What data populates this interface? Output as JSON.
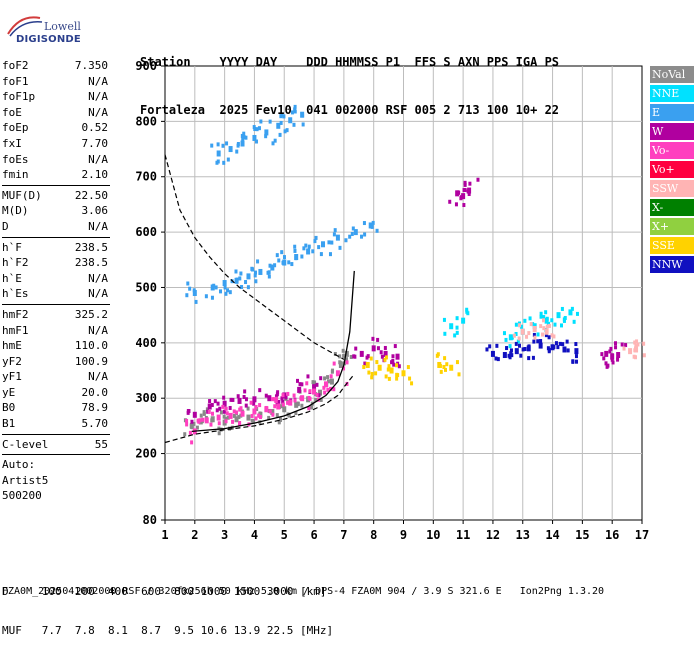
{
  "logo": {
    "lowell": "Lowell",
    "digisonde": "DIGISONDE"
  },
  "header": {
    "line1": "Station    YYYY DAY    DDD HHMMSS P1  FFS S AXN PPS IGA PS",
    "line2": "Fortaleza  2025 Fev10  041 002000 RSF 005 2 713 100 10+ 22"
  },
  "params": {
    "group1": [
      {
        "k": "foF2",
        "v": "7.350"
      },
      {
        "k": "foF1",
        "v": "N/A"
      },
      {
        "k": "foF1p",
        "v": "N/A"
      },
      {
        "k": "foE",
        "v": "N/A"
      },
      {
        "k": "foEp",
        "v": "0.52"
      },
      {
        "k": "fxI",
        "v": "7.70"
      },
      {
        "k": "foEs",
        "v": "N/A"
      },
      {
        "k": "fmin",
        "v": "2.10"
      }
    ],
    "group2": [
      {
        "k": "MUF(D)",
        "v": "22.50"
      },
      {
        "k": "M(D)",
        "v": "3.06"
      },
      {
        "k": "D",
        "v": "N/A"
      }
    ],
    "group3": [
      {
        "k": "h`F",
        "v": "238.5"
      },
      {
        "k": "h`F2",
        "v": "238.5"
      },
      {
        "k": "h`E",
        "v": "N/A"
      },
      {
        "k": "h`Es",
        "v": "N/A"
      }
    ],
    "group4": [
      {
        "k": "hmF2",
        "v": "325.2"
      },
      {
        "k": "hmF1",
        "v": "N/A"
      },
      {
        "k": "hmE",
        "v": "110.0"
      },
      {
        "k": "yF2",
        "v": "100.9"
      },
      {
        "k": "yF1",
        "v": "N/A"
      },
      {
        "k": "yE",
        "v": "20.0"
      },
      {
        "k": "B0",
        "v": "78.9"
      },
      {
        "k": "B1",
        "v": "5.70"
      }
    ],
    "group5": [
      {
        "k": "C-level",
        "v": "55"
      }
    ],
    "auto": [
      "Auto:",
      "Artist5",
      "500200"
    ]
  },
  "footer": {
    "line1": "D     100  200  400  600  800 1000 1500 3000 [km]",
    "line2": "MUF   7.7  7.8  8.1  8.7  9.5 10.6 13.9 22.5 [MHz]",
    "line3": "FZA0M_2025041002000.RSF / 320fx256h 50 kHz 5.0 km / DPS-4 FZA0M 904 / 3.9 S 321.6 E   Ion2Png 1.3.20"
  },
  "legend": [
    {
      "label": "NoVal",
      "color": "#8c8c8c"
    },
    {
      "label": "NNE",
      "color": "#00e1ff"
    },
    {
      "label": "E",
      "color": "#3aa0f0"
    },
    {
      "label": "W",
      "color": "#b0009f"
    },
    {
      "label": "Vo-",
      "color": "#ff3fbf"
    },
    {
      "label": "Vo+",
      "color": "#ff0040"
    },
    {
      "label": "SSW",
      "color": "#ffb4b4"
    },
    {
      "label": "X-",
      "color": "#008000"
    },
    {
      "label": "X+",
      "color": "#90d040"
    },
    {
      "label": "SSE",
      "color": "#ffd200"
    },
    {
      "label": "NNW",
      "color": "#1010c0"
    }
  ],
  "chart_data": {
    "type": "scatter",
    "xlim": [
      1,
      17
    ],
    "ylim": [
      80,
      900
    ],
    "x_ticks": [
      1,
      2,
      3,
      4,
      5,
      6,
      7,
      8,
      9,
      10,
      11,
      12,
      13,
      14,
      15,
      16,
      17
    ],
    "y_ticks": [
      80,
      200,
      300,
      400,
      500,
      600,
      700,
      800,
      900
    ],
    "grid": true,
    "traces": [
      {
        "mode": "O",
        "points": [
          [
            1.9,
            250
          ],
          [
            2.2,
            258
          ],
          [
            2.6,
            262
          ],
          [
            3.0,
            256
          ],
          [
            3.4,
            262
          ],
          [
            3.8,
            265
          ],
          [
            4.2,
            270
          ],
          [
            4.6,
            275
          ],
          [
            5.0,
            280
          ],
          [
            5.4,
            288
          ],
          [
            5.8,
            298
          ],
          [
            6.2,
            310
          ],
          [
            6.6,
            330
          ],
          [
            6.9,
            360
          ],
          [
            7.1,
            380
          ]
        ]
      },
      {
        "mode": "E",
        "points": [
          [
            2.0,
            490
          ],
          [
            2.6,
            500
          ],
          [
            3.0,
            508
          ],
          [
            3.4,
            512
          ],
          [
            3.8,
            520
          ],
          [
            4.2,
            528
          ],
          [
            4.6,
            536
          ],
          [
            5.0,
            545
          ],
          [
            5.4,
            555
          ],
          [
            5.8,
            565
          ],
          [
            6.3,
            578
          ],
          [
            6.8,
            590
          ],
          [
            7.4,
            600
          ],
          [
            7.9,
            612
          ]
        ]
      },
      {
        "mode": "E",
        "points": [
          [
            2.8,
            742
          ],
          [
            3.2,
            750
          ],
          [
            3.6,
            760
          ],
          [
            4.0,
            770
          ],
          [
            4.4,
            780
          ],
          [
            4.8,
            792
          ],
          [
            5.2,
            802
          ],
          [
            5.6,
            812
          ]
        ]
      },
      {
        "mode": "W",
        "points": [
          [
            2.0,
            270
          ],
          [
            2.5,
            285
          ],
          [
            3.0,
            290
          ],
          [
            3.5,
            295
          ],
          [
            4.0,
            298
          ],
          [
            4.5,
            300
          ],
          [
            5.0,
            305
          ],
          [
            5.5,
            315
          ],
          [
            6.0,
            320
          ]
        ]
      },
      {
        "mode": "Vo-",
        "points": [
          [
            2.0,
            240
          ],
          [
            2.4,
            260
          ],
          [
            2.8,
            265
          ],
          [
            3.2,
            268
          ],
          [
            3.6,
            272
          ],
          [
            4.0,
            276
          ],
          [
            4.4,
            280
          ],
          [
            4.8,
            285
          ],
          [
            5.2,
            292
          ],
          [
            5.6,
            300
          ],
          [
            6.0,
            312
          ],
          [
            6.4,
            325
          ],
          [
            6.8,
            345
          ]
        ]
      },
      {
        "mode": "NNE",
        "points": [
          [
            10.6,
            430
          ],
          [
            11.0,
            440
          ],
          [
            12.6,
            410
          ],
          [
            13.0,
            420
          ],
          [
            13.4,
            430
          ],
          [
            13.8,
            440
          ],
          [
            14.2,
            450
          ],
          [
            14.6,
            455
          ]
        ]
      },
      {
        "mode": "NNW",
        "points": [
          [
            12.0,
            380
          ],
          [
            12.4,
            378
          ],
          [
            12.8,
            385
          ],
          [
            13.2,
            390
          ],
          [
            13.6,
            395
          ],
          [
            14.0,
            392
          ],
          [
            14.4,
            388
          ],
          [
            14.8,
            385
          ]
        ]
      },
      {
        "mode": "W",
        "points": [
          [
            10.8,
            670
          ],
          [
            11.0,
            665
          ],
          [
            11.2,
            675
          ],
          [
            7.6,
            380
          ],
          [
            8.0,
            390
          ],
          [
            8.4,
            380
          ],
          [
            8.8,
            375
          ],
          [
            15.8,
            380
          ],
          [
            16.0,
            375
          ],
          [
            16.2,
            378
          ]
        ]
      },
      {
        "mode": "SSE",
        "points": [
          [
            7.8,
            360
          ],
          [
            8.2,
            355
          ],
          [
            8.6,
            350
          ],
          [
            9.0,
            345
          ],
          [
            10.2,
            360
          ],
          [
            10.6,
            355
          ]
        ]
      },
      {
        "mode": "SSW",
        "points": [
          [
            13.0,
            420
          ],
          [
            13.4,
            425
          ],
          [
            13.8,
            420
          ],
          [
            16.6,
            385
          ],
          [
            16.8,
            388
          ]
        ]
      }
    ],
    "profile_curve": [
      [
        1.9,
        240
      ],
      [
        3.0,
        245
      ],
      [
        4.0,
        255
      ],
      [
        5.0,
        268
      ],
      [
        5.8,
        285
      ],
      [
        6.4,
        305
      ],
      [
        6.8,
        330
      ],
      [
        7.0,
        360
      ],
      [
        7.2,
        420
      ],
      [
        7.35,
        530
      ]
    ],
    "model_upper": [
      [
        1.0,
        740
      ],
      [
        1.5,
        640
      ],
      [
        2.0,
        590
      ],
      [
        2.5,
        555
      ],
      [
        3.0,
        525
      ],
      [
        3.5,
        500
      ],
      [
        4.0,
        480
      ],
      [
        4.5,
        460
      ],
      [
        5.0,
        440
      ],
      [
        5.5,
        420
      ],
      [
        6.0,
        400
      ],
      [
        6.5,
        385
      ],
      [
        7.0,
        370
      ]
    ],
    "model_lower": [
      [
        1.0,
        220
      ],
      [
        2.0,
        235
      ],
      [
        3.0,
        243
      ],
      [
        4.0,
        250
      ],
      [
        5.0,
        262
      ],
      [
        5.8,
        275
      ],
      [
        6.4,
        290
      ],
      [
        6.8,
        305
      ],
      [
        7.0,
        320
      ],
      [
        7.3,
        340
      ]
    ]
  }
}
